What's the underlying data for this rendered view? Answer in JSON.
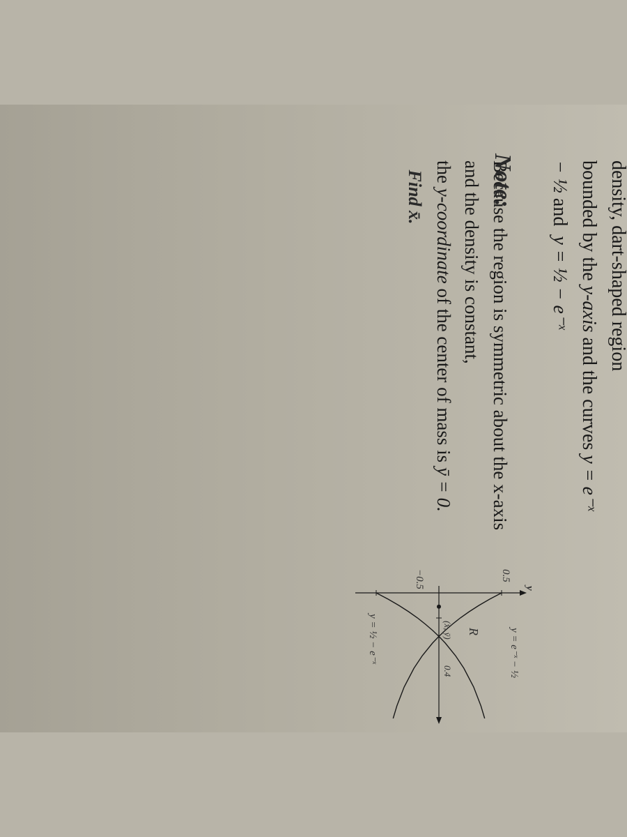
{
  "problem": {
    "line1": "Find the centroid (center of mass) of the unit density, dart-shaped region",
    "line2_prefix": "bounded by the ",
    "line2_yaxis": "y-axis",
    "line2_mid": " and the curves ",
    "eq1": "y = e⁻ˣ − ½",
    "and": " and ",
    "eq2": "y = ½ − e⁻ˣ"
  },
  "note_label": "Note:",
  "hint": {
    "line1": "Because the region is symmetric about the x-axis and the density is constant,",
    "line2_prefix": "the ",
    "line2_ycoord": "y-coordinate",
    "line2_mid": " of the center of mass is ",
    "ybar_eq": "ȳ = 0.",
    "find_x": "Find x̄."
  },
  "graph": {
    "y_axis_label": "y",
    "tick_pos": "0.5",
    "tick_neg": "−0.5",
    "eq_upper": "y = e⁻ˣ − ½",
    "eq_lower": "y = ½ − e⁻ˣ",
    "region_label": "R",
    "centroid_label": "(x̄, ȳ)",
    "x_tick": "0.4",
    "xlim": [
      0,
      2.0
    ],
    "ylim": [
      -0.6,
      0.6
    ],
    "curve_color": "#1a1a1a",
    "axis_color": "#1a1a1a",
    "upper_curve": [
      [
        0,
        0.5
      ],
      [
        0.1,
        0.405
      ],
      [
        0.2,
        0.319
      ],
      [
        0.3,
        0.241
      ],
      [
        0.4,
        0.17
      ],
      [
        0.5,
        0.107
      ],
      [
        0.6,
        0.049
      ],
      [
        0.693,
        0.0
      ],
      [
        0.8,
        -0.051
      ],
      [
        1.0,
        -0.132
      ],
      [
        1.2,
        -0.199
      ],
      [
        1.5,
        -0.277
      ],
      [
        1.8,
        -0.335
      ],
      [
        2.0,
        -0.365
      ]
    ],
    "lower_curve": [
      [
        0,
        -0.5
      ],
      [
        0.1,
        -0.405
      ],
      [
        0.2,
        -0.319
      ],
      [
        0.3,
        -0.241
      ],
      [
        0.4,
        -0.17
      ],
      [
        0.5,
        -0.107
      ],
      [
        0.6,
        -0.049
      ],
      [
        0.693,
        0.0
      ],
      [
        0.8,
        0.051
      ],
      [
        1.0,
        0.132
      ],
      [
        1.2,
        0.199
      ],
      [
        1.5,
        0.277
      ],
      [
        1.8,
        0.335
      ],
      [
        2.0,
        0.365
      ]
    ],
    "centroid_xy": [
      0.22,
      0.0
    ]
  }
}
